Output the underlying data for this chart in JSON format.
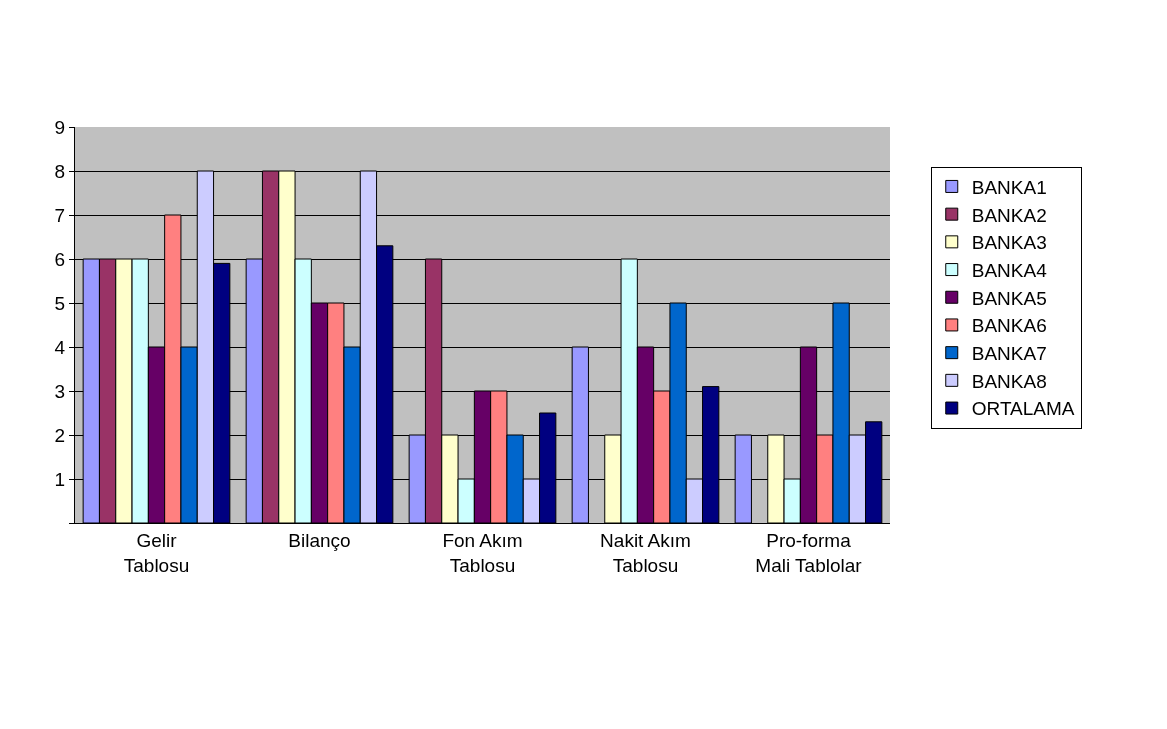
{
  "chart_data": {
    "type": "bar",
    "categories": [
      "Gelir\nTablosu",
      "Bilanço",
      "Fon Akım\nTablosu",
      "Nakit Akım\nTablosu",
      "Pro-forma\nMali Tablolar"
    ],
    "series": [
      {
        "name": "BANKA1",
        "color": "#9999ff",
        "values": [
          6,
          6,
          2,
          4,
          2
        ]
      },
      {
        "name": "BANKA2",
        "color": "#993366",
        "values": [
          6,
          8,
          6,
          null,
          null
        ]
      },
      {
        "name": "BANKA3",
        "color": "#ffffcc",
        "values": [
          6,
          8,
          2,
          2,
          2
        ]
      },
      {
        "name": "BANKA4",
        "color": "#ccffff",
        "values": [
          6,
          6,
          1,
          6,
          1
        ]
      },
      {
        "name": "BANKA5",
        "color": "#660066",
        "values": [
          4,
          5,
          3,
          4,
          4
        ]
      },
      {
        "name": "BANKA6",
        "color": "#ff8080",
        "values": [
          7,
          5,
          3,
          3,
          2
        ]
      },
      {
        "name": "BANKA7",
        "color": "#0066cc",
        "values": [
          4,
          4,
          2,
          5,
          5
        ]
      },
      {
        "name": "BANKA8",
        "color": "#ccccff",
        "values": [
          8,
          8,
          1,
          1,
          2
        ]
      },
      {
        "name": "ORTALAMA",
        "color": "#000080",
        "values": [
          5.9,
          6.3,
          2.5,
          3.1,
          2.3
        ]
      }
    ],
    "ylim": [
      0,
      9
    ],
    "yticks": [
      {
        "value": 0,
        "label": null
      },
      1,
      2,
      3,
      4,
      5,
      6,
      7,
      8,
      9
    ],
    "grid": "y",
    "legend": "right"
  }
}
